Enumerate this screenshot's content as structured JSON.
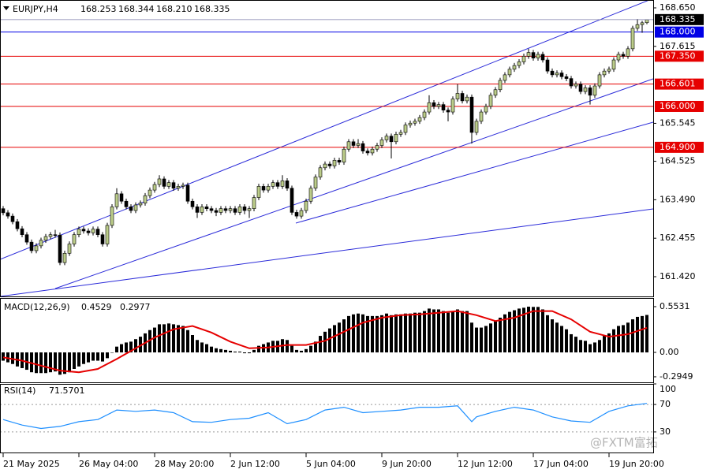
{
  "chart_data": [
    {
      "type": "candlestick",
      "symbol": "EURJPY,H4",
      "header_labels": [
        "168.253",
        "168.344",
        "168.210",
        "168.335"
      ],
      "open": [
        163.25,
        163.14,
        163.05,
        162.9,
        162.71,
        162.55,
        162.35,
        162.12,
        162.25,
        162.4,
        162.5,
        162.55,
        162.54,
        161.8,
        162.05,
        162.3,
        162.55,
        162.7,
        162.65,
        162.6,
        162.7,
        162.55,
        162.3,
        162.8,
        163.3,
        163.65,
        163.45,
        163.3,
        163.2,
        163.35,
        163.4,
        163.6,
        163.75,
        163.9,
        164.05,
        163.85,
        163.95,
        163.8,
        163.85,
        163.88,
        163.45,
        163.3,
        163.15,
        163.3,
        163.25,
        163.2,
        163.15,
        163.25,
        163.2,
        163.25,
        163.15,
        163.3,
        163.2,
        163.25,
        163.55,
        163.85,
        163.75,
        163.85,
        163.95,
        163.85,
        164.0,
        163.8,
        163.15,
        163.05,
        163.2,
        163.45,
        163.8,
        164.1,
        164.35,
        164.45,
        164.4,
        164.55,
        164.5,
        164.85,
        165.05,
        164.95,
        165.0,
        164.8,
        164.75,
        164.85,
        164.95,
        165.1,
        165.2,
        165.05,
        165.25,
        165.3,
        165.5,
        165.55,
        165.6,
        165.7,
        165.85,
        166.1,
        166.0,
        166.05,
        165.9,
        165.85,
        166.2,
        166.35,
        166.15,
        166.25,
        165.3,
        165.6,
        165.85,
        166.0,
        166.3,
        166.45,
        166.7,
        166.85,
        167.0,
        167.1,
        167.2,
        167.35,
        167.45,
        167.3,
        167.4,
        167.25,
        166.95,
        166.85,
        166.9,
        166.8,
        166.75,
        166.55,
        166.6,
        166.4,
        166.5,
        166.3,
        166.55,
        166.85,
        166.95,
        167.0,
        167.25,
        167.4,
        167.35,
        167.55,
        168.1,
        168.2,
        168.253
      ],
      "high": [
        163.32,
        163.21,
        163.12,
        162.97,
        162.78,
        162.62,
        162.42,
        162.32,
        162.47,
        162.57,
        162.62,
        162.68,
        162.61,
        162.12,
        162.37,
        162.62,
        162.77,
        162.77,
        162.72,
        162.77,
        162.77,
        162.62,
        162.87,
        163.37,
        163.8,
        163.72,
        163.52,
        163.37,
        163.42,
        163.47,
        163.67,
        163.82,
        163.97,
        164.15,
        164.12,
        164.02,
        164.02,
        163.92,
        163.95,
        163.95,
        163.52,
        163.37,
        163.37,
        163.37,
        163.32,
        163.27,
        163.32,
        163.32,
        163.32,
        163.32,
        163.37,
        163.37,
        163.32,
        163.62,
        163.92,
        163.92,
        163.92,
        164.02,
        164.02,
        164.15,
        164.07,
        163.87,
        163.22,
        163.27,
        163.52,
        163.87,
        164.17,
        164.42,
        164.52,
        164.52,
        164.62,
        164.62,
        164.92,
        165.12,
        165.12,
        165.12,
        165.07,
        164.87,
        164.92,
        165.02,
        165.17,
        165.27,
        165.27,
        165.32,
        165.37,
        165.57,
        165.62,
        165.67,
        165.77,
        165.92,
        166.3,
        166.17,
        166.12,
        166.12,
        165.97,
        166.27,
        166.6,
        166.42,
        166.32,
        166.32,
        165.67,
        165.92,
        166.07,
        166.37,
        166.52,
        166.77,
        166.92,
        167.07,
        167.17,
        167.27,
        167.42,
        167.55,
        167.52,
        167.47,
        167.47,
        167.32,
        167.02,
        166.97,
        166.97,
        166.87,
        166.82,
        166.67,
        166.67,
        166.57,
        166.57,
        166.62,
        166.92,
        167.02,
        167.07,
        167.32,
        167.47,
        167.47,
        167.62,
        168.17,
        168.35,
        168.3,
        168.344
      ],
      "low": [
        163.07,
        162.98,
        162.83,
        162.64,
        162.48,
        162.28,
        162.05,
        162.05,
        162.18,
        162.33,
        162.43,
        162.47,
        161.73,
        161.73,
        161.98,
        162.23,
        162.48,
        162.58,
        162.53,
        162.53,
        162.48,
        162.23,
        162.23,
        162.73,
        163.23,
        163.38,
        163.23,
        163.13,
        163.13,
        163.28,
        163.33,
        163.53,
        163.68,
        163.83,
        163.78,
        163.78,
        163.73,
        163.73,
        163.78,
        163.38,
        163.23,
        163.0,
        163.08,
        163.18,
        163.13,
        163.05,
        163.08,
        163.13,
        163.13,
        163.08,
        163.08,
        163.1,
        163.0,
        163.18,
        163.48,
        163.68,
        163.68,
        163.78,
        163.78,
        163.78,
        163.73,
        163.08,
        162.98,
        162.98,
        163.13,
        163.38,
        163.73,
        164.03,
        164.28,
        164.33,
        164.33,
        164.43,
        164.43,
        164.78,
        164.88,
        164.88,
        164.73,
        164.68,
        164.68,
        164.78,
        164.88,
        165.03,
        164.6,
        164.98,
        165.18,
        165.23,
        165.43,
        165.48,
        165.53,
        165.63,
        165.78,
        165.93,
        165.93,
        165.83,
        165.6,
        165.78,
        166.13,
        166.08,
        166.08,
        165.0,
        165.23,
        165.53,
        165.78,
        165.93,
        166.23,
        166.38,
        166.63,
        166.78,
        166.93,
        167.03,
        167.13,
        167.28,
        167.23,
        167.23,
        167.18,
        166.88,
        166.78,
        166.78,
        166.73,
        166.68,
        166.48,
        166.48,
        166.33,
        166.33,
        166.05,
        166.23,
        166.48,
        166.78,
        166.88,
        166.93,
        167.18,
        167.28,
        167.28,
        167.48,
        168.03,
        167.98,
        168.21
      ],
      "close": [
        163.14,
        163.05,
        162.9,
        162.71,
        162.55,
        162.35,
        162.12,
        162.25,
        162.4,
        162.5,
        162.55,
        162.54,
        161.8,
        162.05,
        162.3,
        162.55,
        162.7,
        162.65,
        162.6,
        162.7,
        162.55,
        162.3,
        162.8,
        163.3,
        163.65,
        163.45,
        163.3,
        163.2,
        163.35,
        163.4,
        163.6,
        163.75,
        163.9,
        164.05,
        163.85,
        163.95,
        163.8,
        163.85,
        163.88,
        163.45,
        163.3,
        163.15,
        163.3,
        163.25,
        163.2,
        163.15,
        163.25,
        163.2,
        163.25,
        163.15,
        163.3,
        163.2,
        163.25,
        163.55,
        163.85,
        163.75,
        163.85,
        163.95,
        163.85,
        164.0,
        163.8,
        163.15,
        163.05,
        163.2,
        163.45,
        163.8,
        164.1,
        164.35,
        164.45,
        164.4,
        164.55,
        164.5,
        164.85,
        165.05,
        164.95,
        165.0,
        164.8,
        164.75,
        164.85,
        164.95,
        165.1,
        165.2,
        165.05,
        165.25,
        165.3,
        165.5,
        165.55,
        165.6,
        165.7,
        165.85,
        166.1,
        166.0,
        166.05,
        165.9,
        165.85,
        166.2,
        166.35,
        166.15,
        166.25,
        165.3,
        165.6,
        165.85,
        166.0,
        166.3,
        166.45,
        166.7,
        166.85,
        167.0,
        167.1,
        167.2,
        167.35,
        167.45,
        167.3,
        167.4,
        167.25,
        166.95,
        166.85,
        166.9,
        166.8,
        166.75,
        166.55,
        166.6,
        166.4,
        166.5,
        166.3,
        166.55,
        166.85,
        166.95,
        167.0,
        167.25,
        167.4,
        167.35,
        167.55,
        168.1,
        168.2,
        168.25,
        168.335
      ],
      "up_color": "#bccd8a",
      "down_color": "#000000",
      "current_price_color": "#000000",
      "ylim": [
        160.89,
        168.862
      ],
      "yticks": [
        {
          "value": 168.65,
          "label": "168.650"
        },
        167.615,
        165.545,
        164.525,
        {
          "value": 163.49,
          "label": "163.490"
        },
        162.455,
        {
          "value": 161.42,
          "label": "161.420"
        }
      ],
      "levels": [
        {
          "value": 168.0,
          "label": "168.000",
          "color": "#0000e6"
        },
        {
          "value": 167.35,
          "label": "167.350",
          "color": "#e60000"
        },
        {
          "value": 166.601,
          "label": "166.601",
          "color": "#e60000"
        },
        {
          "value": 166.0,
          "label": "166.000",
          "color": "#e60000"
        },
        {
          "value": 164.9,
          "label": "164.900",
          "color": "#e60000"
        }
      ],
      "xlim": [
        -0.667,
        137.333
      ],
      "xticks": [
        {
          "value": 0,
          "label": "21 May 2025"
        },
        {
          "value": 16,
          "label": "26 May 04:00"
        },
        {
          "value": 32,
          "label": "28 May 20:00"
        },
        {
          "value": 48,
          "label": "2 Jun 12:00"
        },
        {
          "value": 64,
          "label": "5 Jun 04:00"
        },
        {
          "value": 80,
          "label": "9 Jun 20:00"
        },
        {
          "value": 96,
          "label": "12 Jun 12:00"
        },
        {
          "value": 112,
          "label": "17 Jun 04:00"
        },
        {
          "value": 128,
          "label": "19 Jun 20:00"
        }
      ]
    },
    {
      "type": "macd",
      "name": "MACD(12,26,9)",
      "histogram": {
        "color": "#000000",
        "values": [
          -0.1,
          -0.12,
          -0.14,
          -0.17,
          -0.19,
          -0.21,
          -0.24,
          -0.25,
          -0.25,
          -0.25,
          -0.24,
          -0.23,
          -0.27,
          -0.26,
          -0.24,
          -0.2,
          -0.17,
          -0.14,
          -0.12,
          -0.1,
          -0.1,
          -0.11,
          -0.07,
          0.0,
          0.07,
          0.1,
          0.12,
          0.13,
          0.16,
          0.19,
          0.23,
          0.27,
          0.3,
          0.34,
          0.34,
          0.35,
          0.34,
          0.33,
          0.32,
          0.27,
          0.21,
          0.15,
          0.12,
          0.1,
          0.07,
          0.05,
          0.04,
          0.03,
          0.02,
          0.01,
          0.01,
          -0.01,
          -0.01,
          0.03,
          0.08,
          0.1,
          0.12,
          0.14,
          0.14,
          0.16,
          0.15,
          0.08,
          0.03,
          0.02,
          0.04,
          0.08,
          0.13,
          0.2,
          0.25,
          0.29,
          0.33,
          0.36,
          0.4,
          0.44,
          0.46,
          0.47,
          0.46,
          0.44,
          0.44,
          0.44,
          0.45,
          0.47,
          0.45,
          0.46,
          0.46,
          0.47,
          0.47,
          0.48,
          0.48,
          0.5,
          0.53,
          0.52,
          0.52,
          0.5,
          0.48,
          0.5,
          0.52,
          0.5,
          0.5,
          0.36,
          0.3,
          0.3,
          0.32,
          0.35,
          0.38,
          0.42,
          0.46,
          0.49,
          0.51,
          0.53,
          0.54,
          0.5531,
          0.55,
          0.55,
          0.52,
          0.45,
          0.4,
          0.36,
          0.32,
          0.28,
          0.22,
          0.19,
          0.15,
          0.14,
          0.1,
          0.12,
          0.15,
          0.2,
          0.23,
          0.28,
          0.32,
          0.33,
          0.36,
          0.4,
          0.43,
          0.44,
          0.4529
        ]
      },
      "signal": {
        "color": "#e60000",
        "x": [
          0,
          4,
          8,
          12,
          16,
          20,
          24,
          28,
          32,
          36,
          40,
          44,
          48,
          52,
          56,
          60,
          64,
          68,
          72,
          76,
          80,
          84,
          88,
          92,
          96,
          100,
          104,
          108,
          112,
          116,
          120,
          124,
          128,
          132,
          136
        ],
        "values": [
          -0.06,
          -0.1,
          -0.16,
          -0.22,
          -0.24,
          -0.2,
          -0.08,
          0.05,
          0.18,
          0.28,
          0.32,
          0.24,
          0.13,
          0.05,
          0.06,
          0.09,
          0.09,
          0.14,
          0.25,
          0.36,
          0.42,
          0.45,
          0.46,
          0.48,
          0.5,
          0.45,
          0.38,
          0.42,
          0.5,
          0.5,
          0.4,
          0.25,
          0.19,
          0.22,
          0.2977
        ]
      },
      "ylim": [
        -0.362,
        0.658
      ],
      "yticks": [
        0.5531,
        {
          "value": 0,
          "label": "0.00"
        },
        -0.2949
      ]
    },
    {
      "type": "line",
      "name": "RSI(14)",
      "color": "#1e8fff",
      "x": [
        0,
        4,
        8,
        12,
        16,
        20,
        24,
        28,
        32,
        36,
        40,
        44,
        48,
        52,
        56,
        60,
        64,
        68,
        72,
        76,
        80,
        84,
        88,
        92,
        96,
        99,
        100,
        104,
        108,
        112,
        116,
        120,
        124,
        128,
        132,
        136
      ],
      "values": [
        48,
        40,
        35,
        38,
        45,
        48,
        62,
        60,
        62,
        58,
        45,
        44,
        48,
        50,
        58,
        42,
        48,
        62,
        66,
        58,
        60,
        62,
        66,
        66,
        68,
        45,
        52,
        60,
        66,
        62,
        52,
        46,
        44,
        60,
        68,
        71.5701
      ],
      "ylim": [
        0,
        100
      ],
      "yticks": [
        100,
        70,
        30
      ],
      "levels": [
        70,
        30
      ],
      "watermark": "@FXTM富拓"
    }
  ]
}
